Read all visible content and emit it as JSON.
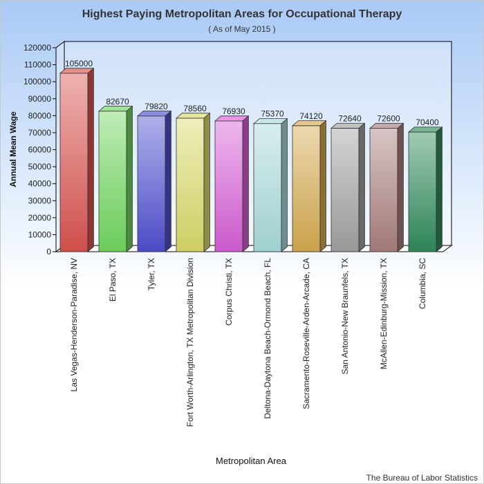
{
  "chart_data": {
    "type": "bar",
    "title": "Highest Paying Metropolitan Areas for Occupational Therapy",
    "subtitle": "( As of May 2015 )",
    "xlabel": "Metropolitan Area",
    "ylabel": "Annual Mean Wage",
    "ylim": [
      0,
      120000
    ],
    "yticks": [
      0,
      10000,
      20000,
      30000,
      40000,
      50000,
      60000,
      70000,
      80000,
      90000,
      100000,
      110000,
      120000
    ],
    "grid": false,
    "legend": "none",
    "categories": [
      "Las Vegas-Henderson-Paradise, NV",
      "El Paso, TX",
      "Tyler, TX",
      "Fort Worth-Arlington, TX Metropolitan Division",
      "Corpus Christi, TX",
      "Deltona-Daytona Beach-Ormond Beach, FL",
      "Sacramento-Roseville-Arden-Arcade, CA",
      "San Antonio-New Braunfels, TX",
      "McAllen-Edinburg-Mission, TX",
      "Columbia, SC"
    ],
    "values": [
      105000,
      82670,
      79820,
      78560,
      76930,
      75370,
      74120,
      72640,
      72600,
      70400
    ],
    "bar_colors": [
      "#d9534f",
      "#70d65e",
      "#4f4fd0",
      "#d9d968",
      "#d65ed6",
      "#a8dada",
      "#d4a94e",
      "#a0a0a0",
      "#a87e7e",
      "#2f8a5a"
    ],
    "source": "The Bureau of Labor Statistics"
  }
}
